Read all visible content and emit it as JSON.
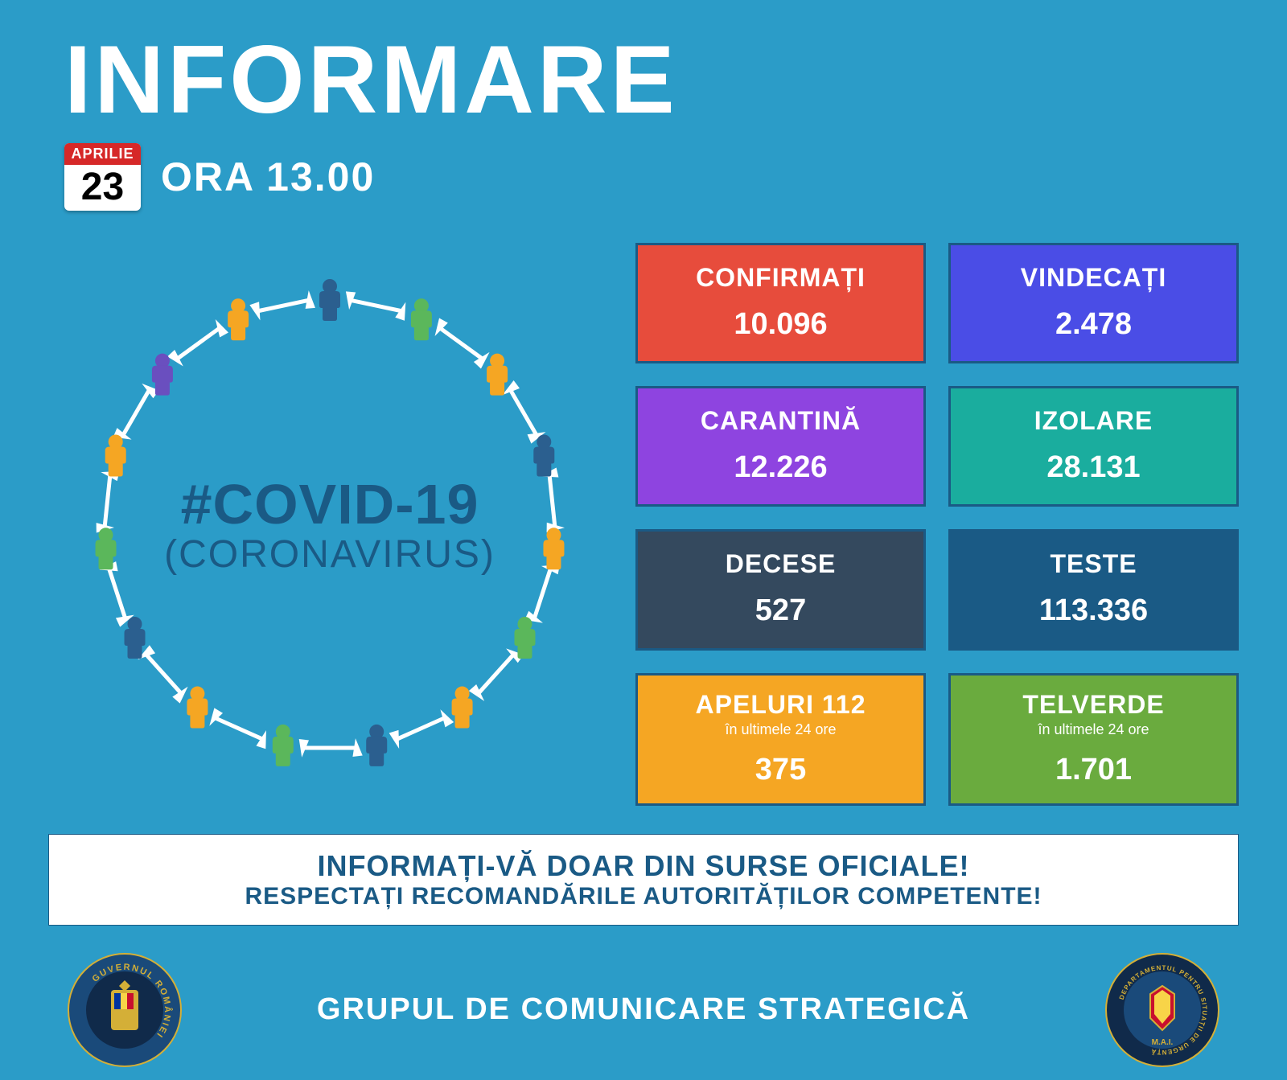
{
  "header": {
    "title": "INFORMARE",
    "calendar_month": "APRILIE",
    "calendar_day": "23",
    "time_label": "ORA 13.00"
  },
  "circle": {
    "hashtag": "#COVID-19",
    "subtitle": "(CORONAVIRUS)",
    "people_colors": [
      "#2b5f8f",
      "#5bb75b",
      "#f5a623",
      "#2b5f8f",
      "#f5a623",
      "#5bb75b",
      "#f5a623",
      "#2b5f8f",
      "#5bb75b",
      "#f5a623",
      "#2b5f8f",
      "#5bb75b",
      "#f5a623",
      "#6a4fbf",
      "#f5a623"
    ]
  },
  "tiles": [
    {
      "label": "CONFIRMAȚI",
      "sub": "",
      "value": "10.096",
      "bg": "#e74c3c"
    },
    {
      "label": "VINDECAȚI",
      "sub": "",
      "value": "2.478",
      "bg": "#4a4de6"
    },
    {
      "label": "CARANTINĂ",
      "sub": "",
      "value": "12.226",
      "bg": "#8e44e0"
    },
    {
      "label": "IZOLARE",
      "sub": "",
      "value": "28.131",
      "bg": "#1aad9e"
    },
    {
      "label": "DECESE",
      "sub": "",
      "value": "527",
      "bg": "#34495e"
    },
    {
      "label": "TESTE",
      "sub": "",
      "value": "113.336",
      "bg": "#1a5a85"
    },
    {
      "label": "APELURI 112",
      "sub": "în ultimele 24 ore",
      "value": "375",
      "bg": "#f5a623"
    },
    {
      "label": "TELVERDE",
      "sub": "în ultimele 24 ore",
      "value": "1.701",
      "bg": "#6aab3e"
    }
  ],
  "banner": {
    "line1": "INFORMAȚI-VĂ DOAR DIN SURSE OFICIALE!",
    "line2": "RESPECTAȚI RECOMANDĂRILE AUTORITĂȚILOR COMPETENTE!"
  },
  "footer": {
    "text": "GRUPUL DE COMUNICARE STRATEGICĂ",
    "crest_left_ring": "GUVERNUL ROMÂNIEI",
    "crest_right_ring": "DEPARTAMENTUL PENTRU SITUAȚII DE URGENȚĂ"
  }
}
